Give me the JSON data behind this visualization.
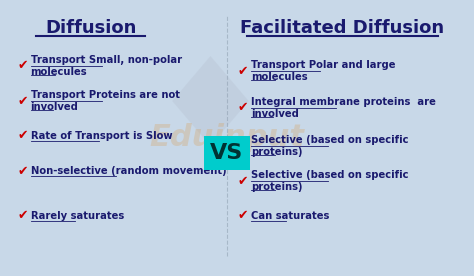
{
  "bg_color": "#c8d8e8",
  "title_left": "Diffusion",
  "title_right": "Facilitated Diffusion",
  "vs_text": "VS",
  "left_items": [
    "Transport Small, non-polar\nmolecules",
    "Transport Proteins are not\ninvolved",
    "Rate of Transport is Slow",
    "Non-selective (random movement)",
    "Rarely saturates"
  ],
  "right_items": [
    "Transport Polar and large\nmolecules",
    "Integral membrane proteins  are\ninvolved",
    "Selective (based on specific\nproteins)",
    "Selective (based on specific\nproteins)",
    "Can saturates"
  ],
  "check_color": "#cc0000",
  "text_color": "#1a1a6e",
  "vs_color": "#003333",
  "vs_bg": "#00cccc",
  "watermark": "Eduinput",
  "watermark_color": "#d4a870"
}
